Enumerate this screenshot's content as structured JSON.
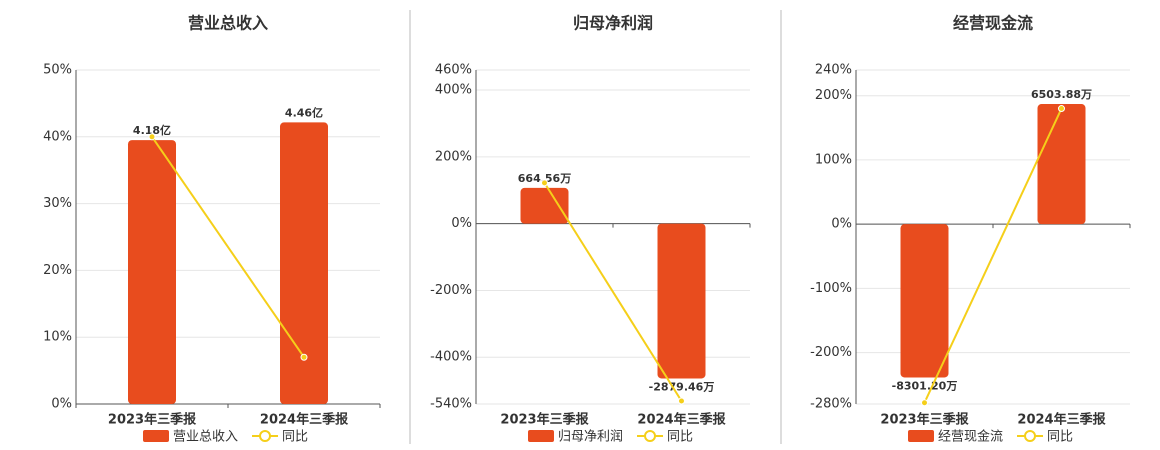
{
  "chart_data": [
    {
      "type": "bar",
      "title": "营业总收入",
      "categories": [
        "2023年三季报",
        "2024年三季报"
      ],
      "series": [
        {
          "name": "营业总收入",
          "type": "bar",
          "axis": "y2",
          "color": "#e84c1e",
          "values": [
            4.18,
            4.46
          ],
          "value_labels": [
            "4.18亿",
            "4.46亿"
          ]
        },
        {
          "name": "同比",
          "type": "line",
          "color": "#f5cf1a",
          "values": [
            40,
            7
          ]
        }
      ],
      "ylim": [
        0,
        50
      ],
      "yticks": [
        {
          "value": 0,
          "label": "0%"
        },
        {
          "value": 10,
          "label": "10%"
        },
        {
          "value": 20,
          "label": "20%"
        },
        {
          "value": 30,
          "label": "30%"
        },
        {
          "value": 40,
          "label": "40%"
        },
        {
          "value": 50,
          "label": "50%"
        }
      ],
      "y2lim": [
        0,
        5.29
      ],
      "grid": true
    },
    {
      "type": "bar",
      "title": "归母净利润",
      "categories": [
        "2023年三季报",
        "2024年三季报"
      ],
      "series": [
        {
          "name": "归母净利润",
          "type": "bar",
          "axis": "y2",
          "color": "#e84c1e",
          "values": [
            664.56,
            -2879.46
          ],
          "value_labels": [
            "664.56万",
            "-2879.46万"
          ]
        },
        {
          "name": "同比",
          "type": "line",
          "color": "#f5cf1a",
          "values": [
            122,
            -531
          ]
        }
      ],
      "ylim": [
        -540,
        460
      ],
      "yticks": [
        {
          "value": -540,
          "label": "-540%"
        },
        {
          "value": -400,
          "label": "-400%"
        },
        {
          "value": -200,
          "label": "-200%"
        },
        {
          "value": 0,
          "label": "0%"
        },
        {
          "value": 200,
          "label": "200%"
        },
        {
          "value": 400,
          "label": "400%"
        },
        {
          "value": 460,
          "label": "460%"
        }
      ],
      "y2lim": [
        -3354,
        2857
      ],
      "grid": true
    },
    {
      "type": "bar",
      "title": "经营现金流",
      "categories": [
        "2023年三季报",
        "2024年三季报"
      ],
      "series": [
        {
          "name": "经营现金流",
          "type": "bar",
          "axis": "y2",
          "color": "#e84c1e",
          "values": [
            -8301.2,
            6503.88
          ],
          "value_labels": [
            "-8301.20万",
            "6503.88万"
          ]
        },
        {
          "name": "同比",
          "type": "line",
          "color": "#f5cf1a",
          "values": [
            -278,
            180
          ]
        }
      ],
      "ylim": [
        -280,
        240
      ],
      "yticks": [
        {
          "value": -280,
          "label": "-280%"
        },
        {
          "value": -200,
          "label": "-200%"
        },
        {
          "value": -100,
          "label": "-100%"
        },
        {
          "value": 0,
          "label": "0%"
        },
        {
          "value": 100,
          "label": "100%"
        },
        {
          "value": 200,
          "label": "200%"
        },
        {
          "value": 240,
          "label": "240%"
        }
      ],
      "y2lim": [
        -9738,
        8347
      ],
      "grid": true
    }
  ]
}
